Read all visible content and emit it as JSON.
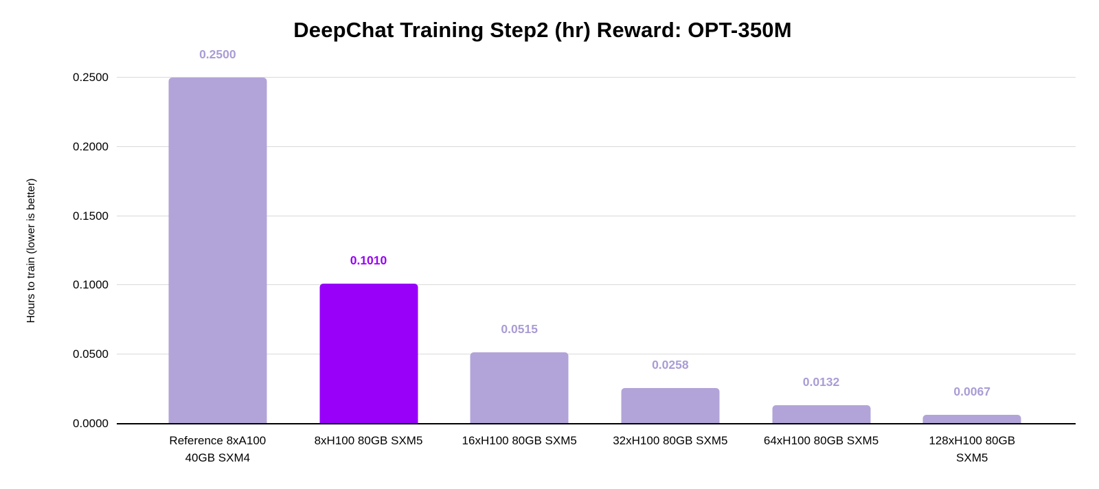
{
  "chart_data": {
    "type": "bar",
    "title": "DeepChat Training Step2 (hr) Reward: OPT-350M",
    "ylabel": "Hours to train (lower is better)",
    "xlabel": "",
    "categories": [
      "Reference 8xA100\n40GB SXM4",
      "8xH100 80GB SXM5",
      "16xH100 80GB SXM5",
      "32xH100 80GB SXM5",
      "64xH100 80GB SXM5",
      "128xH100 80GB\nSXM5"
    ],
    "values": [
      0.25,
      0.101,
      0.0515,
      0.0258,
      0.0132,
      0.0067
    ],
    "value_labels": [
      "0.2500",
      "0.1010",
      "0.0515",
      "0.0258",
      "0.0132",
      "0.0067"
    ],
    "highlight_index": 1,
    "ylim": [
      0,
      0.25
    ],
    "yticks": [
      "0.0000",
      "0.0500",
      "0.1000",
      "0.1500",
      "0.2000",
      "0.2500"
    ],
    "grid": true,
    "legend": "none",
    "colors": {
      "background": "#ffffff",
      "bar_default": "#b2a4d8",
      "bar_highlight": "#9800fa",
      "value_label_default": "#aa9cd5",
      "value_label_highlight": "#9800f5",
      "gridline": "#d9d9d9",
      "axis_line": "#000000",
      "text": "#000000"
    }
  }
}
